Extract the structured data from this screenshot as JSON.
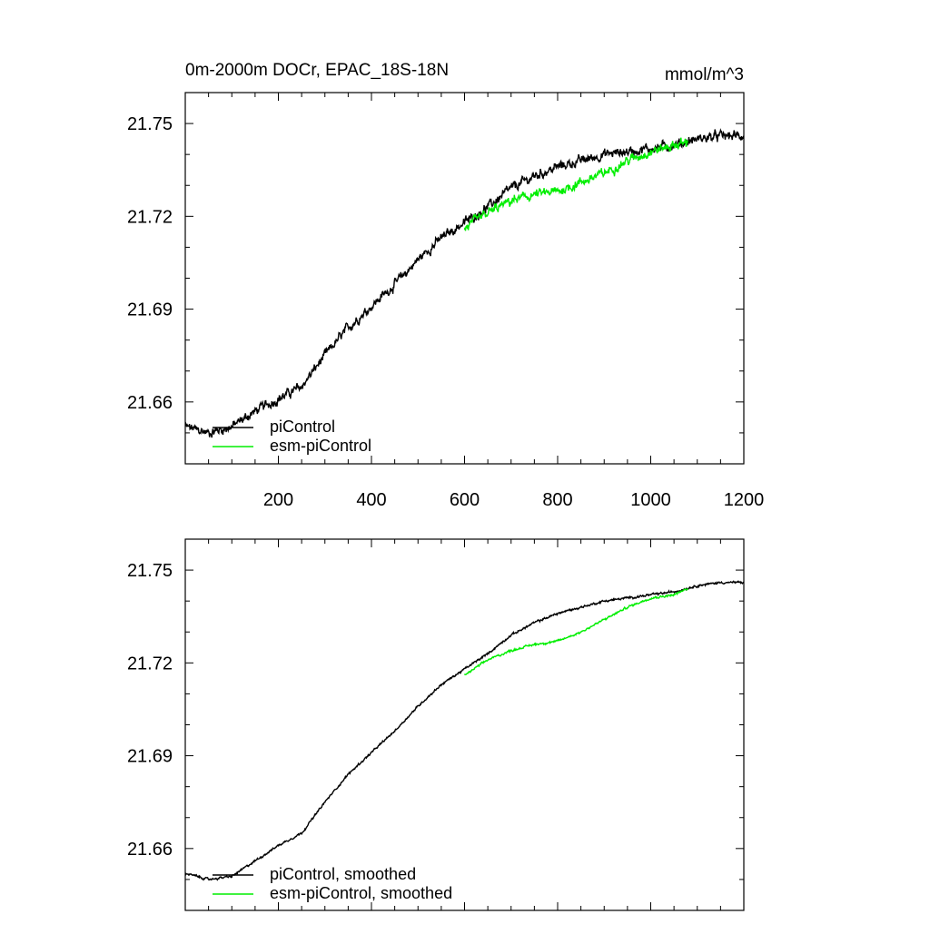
{
  "figure": {
    "title_left": "0m-2000m DOCr, EPAC_18S-18N",
    "title_right": "mmol/m^3"
  },
  "colors": {
    "piControl": "#000000",
    "esm_piControl": "#00ee00"
  },
  "chart_data": [
    {
      "type": "line",
      "title": "0m-2000m DOCr, EPAC_18S-18N",
      "units": "mmol/m^3",
      "xlim": [
        0,
        1200
      ],
      "ylim": [
        21.64,
        21.76
      ],
      "xticks": [
        200,
        400,
        600,
        800,
        1000,
        1200
      ],
      "xtick_labels": [
        "200",
        "400",
        "600",
        "800",
        "1000",
        "1200"
      ],
      "yticks": [
        21.66,
        21.69,
        21.72,
        21.75
      ],
      "ytick_labels": [
        "21.66",
        "21.69",
        "21.72",
        "21.75"
      ],
      "noise": 0.0018,
      "legend_position": "bottom-left",
      "series": [
        {
          "name": "piControl",
          "color": "#000000",
          "x": [
            0,
            50,
            100,
            150,
            200,
            250,
            300,
            350,
            400,
            450,
            500,
            550,
            600,
            650,
            700,
            750,
            800,
            850,
            900,
            950,
            1000,
            1050,
            1100,
            1150,
            1200
          ],
          "y": [
            21.652,
            21.65,
            21.652,
            21.657,
            21.661,
            21.665,
            21.675,
            21.684,
            21.691,
            21.698,
            21.706,
            21.713,
            21.718,
            21.723,
            21.729,
            21.733,
            21.736,
            21.738,
            21.74,
            21.741,
            21.742,
            21.743,
            21.745,
            21.746,
            21.746
          ]
        },
        {
          "name": "esm-piControl",
          "color": "#00ee00",
          "x": [
            600,
            650,
            700,
            750,
            800,
            850,
            900,
            950,
            1000,
            1050,
            1080
          ],
          "y": [
            21.716,
            21.721,
            21.725,
            21.727,
            21.728,
            21.731,
            21.734,
            21.738,
            21.741,
            21.743,
            21.744
          ]
        }
      ]
    },
    {
      "type": "line",
      "xlim": [
        0,
        1200
      ],
      "ylim": [
        21.64,
        21.76
      ],
      "yticks": [
        21.66,
        21.69,
        21.72,
        21.75
      ],
      "ytick_labels": [
        "21.66",
        "21.69",
        "21.72",
        "21.75"
      ],
      "noise": 0.0004,
      "legend_position": "bottom-left",
      "series": [
        {
          "name": "piControl, smoothed",
          "color": "#000000",
          "x": [
            0,
            50,
            100,
            150,
            200,
            250,
            300,
            350,
            400,
            450,
            500,
            550,
            600,
            650,
            700,
            750,
            800,
            850,
            900,
            950,
            1000,
            1050,
            1100,
            1150,
            1200
          ],
          "y": [
            21.652,
            21.65,
            21.651,
            21.656,
            21.661,
            21.665,
            21.675,
            21.684,
            21.691,
            21.698,
            21.706,
            21.713,
            21.718,
            21.723,
            21.729,
            21.733,
            21.736,
            21.738,
            21.74,
            21.741,
            21.742,
            21.743,
            21.745,
            21.746,
            21.746
          ]
        },
        {
          "name": "esm-piControl, smoothed",
          "color": "#00ee00",
          "x": [
            600,
            650,
            700,
            750,
            800,
            850,
            900,
            950,
            1000,
            1050,
            1080
          ],
          "y": [
            21.716,
            21.721,
            21.724,
            21.726,
            21.727,
            21.73,
            21.734,
            21.738,
            21.741,
            21.742,
            21.744
          ]
        }
      ]
    }
  ]
}
